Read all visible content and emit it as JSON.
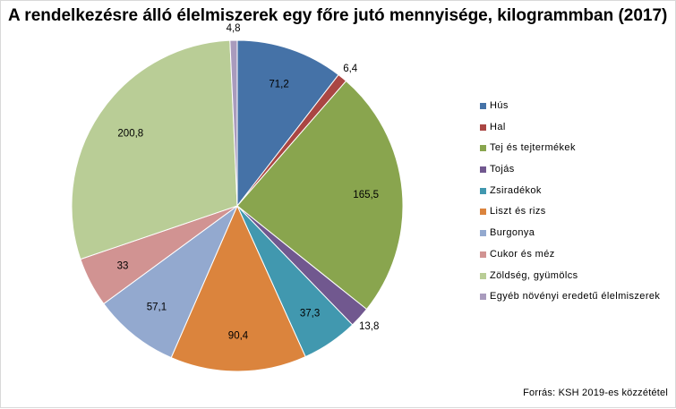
{
  "chart_data": {
    "type": "pie",
    "title": "A rendelkezésre álló élelmiszerek egy főre jutó mennyisége, kilogrammban (2017)",
    "categories": [
      "Hús",
      "Hal",
      "Tej és tejtermékek",
      "Tojás",
      "Zsiradékok",
      "Liszt és rizs",
      "Burgonya",
      "Cukor és méz",
      "Zöldség, gyümölcs",
      "Egyéb növényi eredetű élelmiszerek"
    ],
    "values": [
      71.2,
      6.4,
      165.5,
      13.8,
      37.3,
      90.4,
      57.1,
      33,
      200.8,
      4.8
    ],
    "data_labels": [
      "71,2",
      "6,4",
      "165,5",
      "13,8",
      "37,3",
      "90,4",
      "57,1",
      "33",
      "200,8",
      "4,8"
    ],
    "colors": [
      "#4572a7",
      "#aa4643",
      "#89a54e",
      "#71588f",
      "#4198af",
      "#db843d",
      "#93a9cf",
      "#d19392",
      "#b9cd96",
      "#a99bbd"
    ],
    "start_angle_deg": 0,
    "direction": "clockwise",
    "legend_position": "right"
  },
  "source_note": "Forrás: KSH 2019-es közzététel"
}
